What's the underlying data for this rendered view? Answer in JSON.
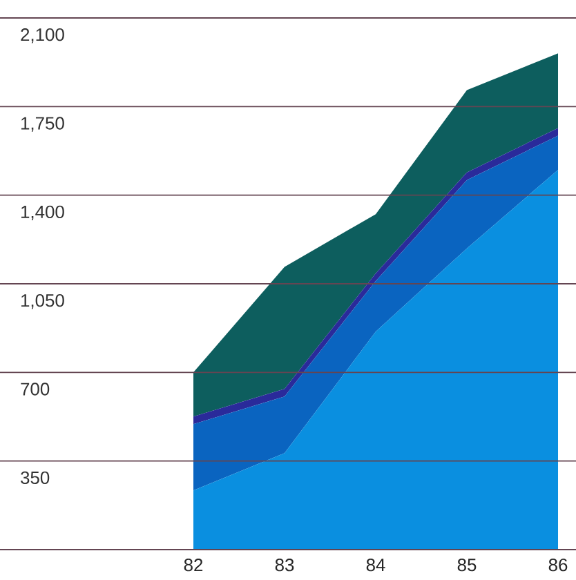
{
  "chart_data": {
    "type": "area",
    "stacked": true,
    "categories": [
      "82",
      "83",
      "84",
      "85",
      "86"
    ],
    "series": [
      {
        "color": "#0a8fe0",
        "values": [
          234,
          381,
          861,
          1190,
          1500
        ]
      },
      {
        "color": "#0a64c0",
        "values": [
          262,
          224,
          200,
          270,
          135
        ]
      },
      {
        "color": "#2a2a9a",
        "values": [
          30,
          30,
          30,
          30,
          30
        ]
      },
      {
        "color": "#0d5e5e",
        "values": [
          174,
          482,
          234,
          325,
          295
        ]
      }
    ],
    "ylim": [
      0,
      2100
    ],
    "yticks": [
      {
        "value": 0,
        "label": null
      },
      {
        "value": 350,
        "label": "350"
      },
      {
        "value": 700,
        "label": "700"
      },
      {
        "value": 1050,
        "label": "1,050"
      },
      {
        "value": 1400,
        "label": "1,400"
      },
      {
        "value": 1750,
        "label": "1,750"
      },
      {
        "value": 2100,
        "label": "2,100"
      }
    ],
    "grid": "y"
  }
}
